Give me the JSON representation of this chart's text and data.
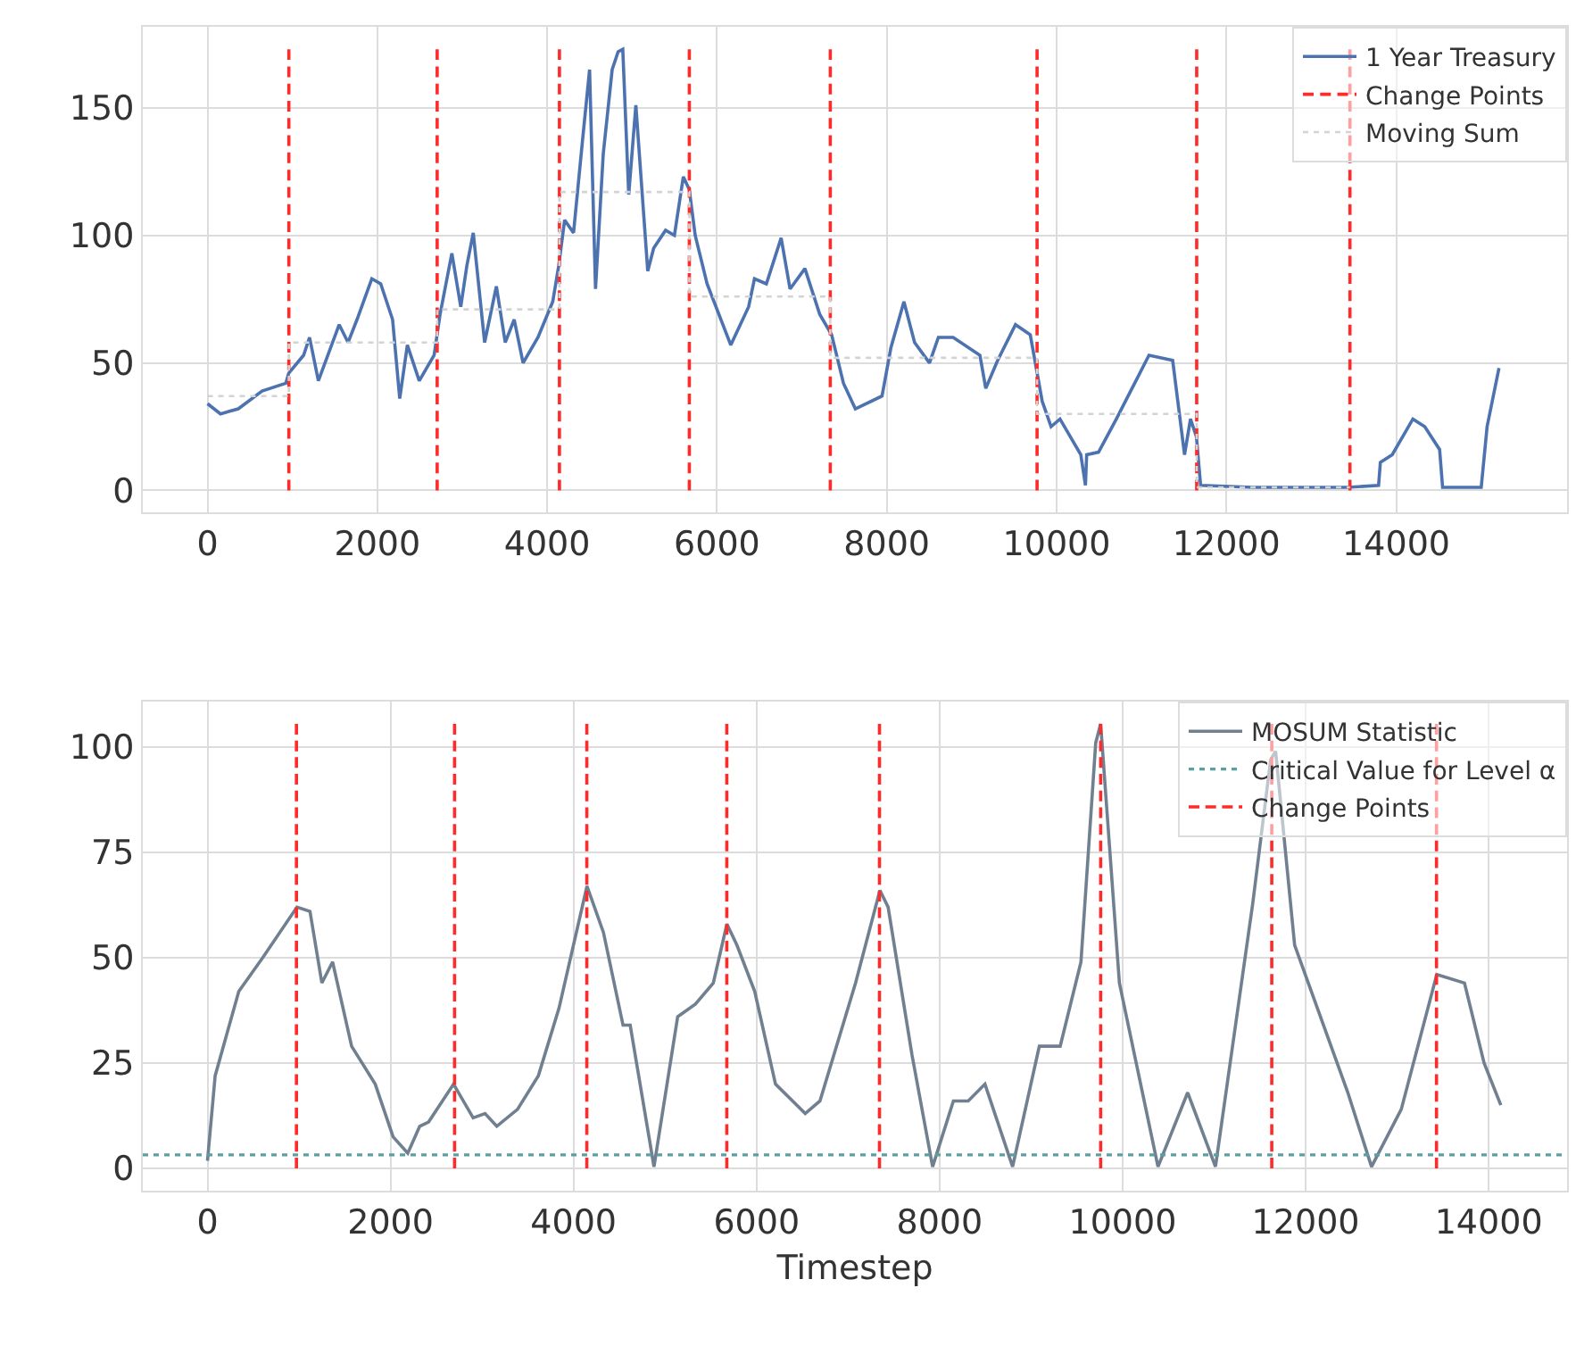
{
  "chart_data": [
    {
      "type": "line",
      "xlim": [
        -762,
        16012
      ],
      "ylim": [
        -8.6,
        181.8
      ],
      "xticks": [
        0,
        2000,
        4000,
        6000,
        8000,
        10000,
        12000,
        14000
      ],
      "yticks": [
        0,
        50,
        100,
        150
      ],
      "grid": true,
      "legend": "top right",
      "series": [
        {
          "name": "1 Year Treasury",
          "color": "#4c72b0",
          "x": [
            0,
            153,
            363,
            643,
            922,
            957,
            1132,
            1202,
            1306,
            1551,
            1656,
            1761,
            1935,
            2040,
            2180,
            2264,
            2354,
            2494,
            2669,
            2739,
            2878,
            2983,
            3054,
            3130,
            3264,
            3402,
            3507,
            3612,
            3717,
            3892,
            4066,
            4136,
            4206,
            4311,
            4416,
            4500,
            4570,
            4661,
            4766,
            4836,
            4891,
            4961,
            5045,
            5185,
            5255,
            5395,
            5499,
            5604,
            5674,
            5744,
            5884,
            6163,
            6373,
            6442,
            6582,
            6756,
            6861,
            7036,
            7211,
            7351,
            7490,
            7630,
            7944,
            8049,
            8202,
            8328,
            8503,
            8608,
            8782,
            9097,
            9166,
            9306,
            9516,
            9690,
            9830,
            9935,
            10040,
            10285,
            10340,
            10354,
            10494,
            10704,
            11088,
            11367,
            11507,
            11577,
            11647,
            11696,
            12310,
            13428,
            13792,
            13813,
            13953,
            14196,
            14336,
            14511,
            14546,
            15001,
            15070,
            15210
          ],
          "values": [
            34,
            30,
            32,
            39,
            42,
            46,
            53,
            60,
            43,
            65,
            58,
            67,
            83,
            81,
            67,
            36,
            57,
            43,
            53,
            69,
            93,
            72,
            88,
            101,
            58,
            80,
            58,
            67,
            50,
            60,
            74,
            88,
            106,
            101,
            137,
            165,
            79,
            132,
            165,
            172,
            173,
            116,
            151,
            86,
            95,
            102,
            100,
            123,
            118,
            100,
            81,
            57,
            72,
            83,
            81,
            99,
            79,
            87,
            69,
            61,
            42,
            32,
            37,
            56,
            74,
            58,
            50,
            60,
            60,
            53,
            40,
            51,
            65,
            61,
            35,
            25,
            28,
            14,
            2,
            14,
            15,
            28,
            53,
            51,
            14,
            28,
            21,
            2,
            1.2,
            1.2,
            2,
            11,
            14,
            28,
            25,
            16,
            1.2,
            1.2,
            25,
            48
          ]
        },
        {
          "name": "Change Points",
          "type": "line",
          "color": "#ff2a2a",
          "line_style": "dashed",
          "x": [
            958,
            958,
            null,
            2705,
            2705,
            null,
            4145,
            4145,
            null,
            5675,
            5675,
            null,
            7335,
            7335,
            null,
            9770,
            9770,
            null,
            11650,
            11650,
            null,
            13455,
            13455
          ],
          "values": [
            0,
            173,
            null,
            0,
            173,
            null,
            0,
            173,
            null,
            0,
            173,
            null,
            0,
            173,
            null,
            0,
            173,
            null,
            0,
            173,
            null,
            0,
            173
          ]
        },
        {
          "name": "Moving Sum",
          "type": "step",
          "color": "#d3d3d3",
          "line_style": "dotted",
          "x": [
            0,
            958,
            2705,
            4145,
            5675,
            7335,
            9770,
            11650,
            13455
          ],
          "values": [
            37,
            58,
            71,
            117,
            76,
            52,
            30,
            1.2,
            1.2
          ]
        }
      ]
    },
    {
      "type": "line",
      "xlabel": "Timestep",
      "xlim": [
        -707,
        14857
      ],
      "ylim": [
        -5.3,
        110.8
      ],
      "xticks": [
        0,
        2000,
        4000,
        6000,
        8000,
        10000,
        12000,
        14000
      ],
      "yticks": [
        0,
        25,
        50,
        75,
        100
      ],
      "grid": true,
      "legend": "top right",
      "series": [
        {
          "name": "MOSUM Statistic",
          "color": "#708090",
          "x": [
            0,
            84,
            342,
            603,
            978,
            1120,
            1250,
            1367,
            1575,
            1833,
            2028,
            2189,
            2319,
            2416,
            2689,
            2903,
            3033,
            3161,
            3388,
            3616,
            3841,
            4147,
            4327,
            4541,
            4619,
            4879,
            5138,
            5332,
            5527,
            5676,
            5785,
            5980,
            6207,
            6532,
            6693,
            7082,
            7348,
            7438,
            7698,
            7924,
            8151,
            8313,
            8496,
            8798,
            9090,
            9318,
            9545,
            9706,
            9760,
            9965,
            10387,
            10711,
            11015,
            11423,
            11618,
            11672,
            11880,
            12461,
            12720,
            13045,
            13433,
            13736,
            13950,
            14133
          ],
          "values": [
            1.8,
            22,
            42,
            50,
            62,
            61,
            44,
            49,
            29,
            20,
            7.5,
            3.6,
            10,
            11,
            20,
            12,
            13,
            10,
            14,
            22,
            38,
            67,
            56,
            34,
            34,
            0.4,
            36,
            39,
            44,
            58,
            53,
            42,
            20,
            13,
            16,
            44,
            66,
            62,
            27,
            0.4,
            16,
            16,
            20,
            0.4,
            29,
            29,
            49,
            101,
            105.5,
            44,
            0.4,
            18,
            0.4,
            63,
            97,
            99,
            53,
            18,
            0.4,
            14,
            46,
            44,
            25,
            15
          ]
        },
        {
          "name": "Change Points",
          "type": "line",
          "color": "#ff2a2a",
          "line_style": "dashed",
          "x": [
            972,
            972,
            null,
            2700,
            2700,
            null,
            4145,
            4145,
            null,
            5675,
            5675,
            null,
            7343,
            7343,
            null,
            9760,
            9760,
            null,
            11630,
            11630,
            null,
            13430,
            13430
          ],
          "values": [
            0,
            105.5,
            null,
            0,
            105.5,
            null,
            0,
            105.5,
            null,
            0,
            105.5,
            null,
            0,
            105.5,
            null,
            0,
            105.5,
            null,
            0,
            105.5,
            null,
            0,
            105.5
          ]
        }
      ],
      "ref_lines": [
        {
          "axis": "y",
          "value": 3.2,
          "label": "Critical Value for Level α",
          "color": "#5f9ea0",
          "line_style": "dotted"
        }
      ]
    }
  ]
}
